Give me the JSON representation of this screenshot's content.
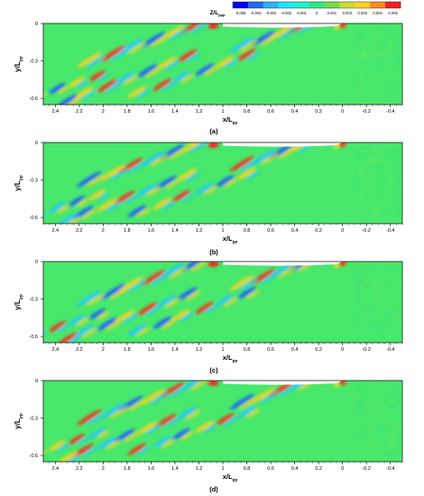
{
  "colorbar": {
    "label_main": "Z/L",
    "label_sub": "ppp",
    "ticks": [
      "-0.005",
      "-0.004",
      "-0.003",
      "-0.002",
      "-0.001",
      "0",
      "0.001",
      "0.002",
      "0.003",
      "0.004",
      "0.005"
    ],
    "colors": [
      "#0000ff",
      "#1f6cff",
      "#25b8ff",
      "#1fe6ff",
      "#1ef5c8",
      "#2ee88a",
      "#6fe04b",
      "#c8e02a",
      "#ffd21f",
      "#ff8a1f",
      "#ff1f1f"
    ]
  },
  "axis_labels": {
    "x_main": "x/L",
    "x_sub": "pp",
    "y_main": "y/L",
    "y_sub": "pp"
  },
  "colors": {
    "background_field": "#47e86b",
    "hull": "#ffffff",
    "frame": "#000000"
  },
  "chart_data": [
    {
      "type": "heatmap",
      "panel_label": "(a)",
      "xlim": [
        2.5,
        -0.5
      ],
      "ylim": [
        -0.65,
        0
      ],
      "x_ticks": [
        "2.4",
        "2.2",
        "2",
        "1.8",
        "1.6",
        "1.4",
        "1.2",
        "1",
        "0.8",
        "0.6",
        "0.4",
        "0.2",
        "0",
        "-0.2",
        "-0.4"
      ],
      "y_ticks": [
        "0",
        "-0.3",
        "-0.6"
      ],
      "colorbar_range": [
        -0.005,
        0.005
      ]
    },
    {
      "type": "heatmap",
      "panel_label": "(b)",
      "xlim": [
        2.5,
        -0.5
      ],
      "ylim": [
        -0.65,
        0
      ],
      "x_ticks": [
        "2.4",
        "2.2",
        "2",
        "1.8",
        "1.6",
        "1.4",
        "1.2",
        "1",
        "0.8",
        "0.6",
        "0.4",
        "0.2",
        "0",
        "-0.2",
        "-0.4"
      ],
      "y_ticks": [
        "0",
        "-0.3",
        "-0.6"
      ],
      "colorbar_range": [
        -0.005,
        0.005
      ]
    },
    {
      "type": "heatmap",
      "panel_label": "(c)",
      "xlim": [
        2.5,
        -0.5
      ],
      "ylim": [
        -0.65,
        0
      ],
      "x_ticks": [
        "2.4",
        "2.2",
        "2",
        "1.8",
        "1.6",
        "1.4",
        "1.2",
        "1",
        "0.8",
        "0.6",
        "0.4",
        "0.2",
        "0",
        "-0.2",
        "-0.4"
      ],
      "y_ticks": [
        "0",
        "-0.3",
        "-0.6"
      ],
      "colorbar_range": [
        -0.005,
        0.005
      ]
    },
    {
      "type": "heatmap",
      "panel_label": "(d)",
      "xlim": [
        2.5,
        -0.5
      ],
      "ylim": [
        -0.65,
        0
      ],
      "x_ticks": [
        "2.4",
        "2.2",
        "2",
        "1.8",
        "1.6",
        "1.4",
        "1.2",
        "1",
        "0.8",
        "0.6",
        "0.4",
        "0.2",
        "0",
        "-0.2",
        "-0.4"
      ],
      "y_ticks": [
        "0",
        "-0.3",
        "-0.6"
      ],
      "colorbar_range": [
        -0.005,
        0.005
      ]
    }
  ]
}
